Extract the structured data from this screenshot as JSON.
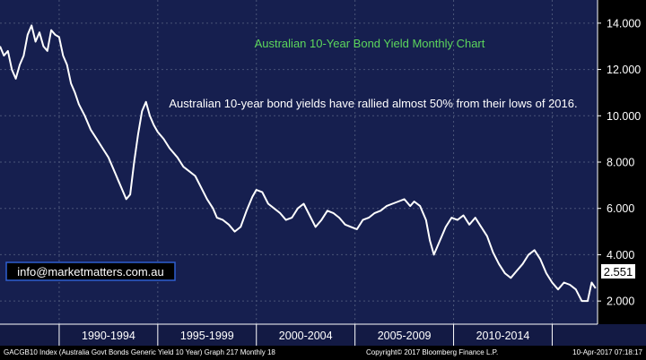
{
  "footer": {
    "left": "GACGB10 Index (Australia Govt Bonds Generic Yield 10 Year) Graph 217  Monthly 18",
    "center": "Copyright© 2017 Bloomberg Finance L.P.",
    "right": "10-Apr-2017 07:18:17"
  },
  "chart_data": {
    "type": "line",
    "title": "Australian 10-Year Bond Yield Monthly Chart",
    "annotation": "Australian 10-year bond yields have rallied almost 50% from their lows of 2016.",
    "watermark": "info@marketmatters.com.au",
    "last_value_label": "2.551",
    "ylim": [
      1,
      15
    ],
    "y_ticks": [
      "2.000",
      "4.000",
      "6.000",
      "8.000",
      "10.000",
      "12.000",
      "14.000"
    ],
    "x_range": [
      1987.0,
      2017.3
    ],
    "x_groups": [
      {
        "label": "1990-1994",
        "from": 1990,
        "to": 1995
      },
      {
        "label": "1995-1999",
        "from": 1995,
        "to": 2000
      },
      {
        "label": "2000-2004",
        "from": 2000,
        "to": 2005
      },
      {
        "label": "2005-2009",
        "from": 2005,
        "to": 2010
      },
      {
        "label": "2010-2014",
        "from": 2010,
        "to": 2015
      }
    ],
    "grid": true,
    "colors": {
      "background": "#000000",
      "plot_background": "#161f4f",
      "grid": "#4a5478",
      "line": "#ffffff",
      "title": "#5cd65c",
      "text": "#ffffff",
      "axis_bar": "#131a44",
      "watermark_border": "#2e5fd0"
    },
    "series": [
      {
        "x": [
          1987.0,
          1987.2,
          1987.4,
          1987.6,
          1987.8,
          1988.0,
          1988.2,
          1988.4,
          1988.6,
          1988.8,
          1989.0,
          1989.2,
          1989.4,
          1989.6,
          1989.8,
          1990.0,
          1990.2,
          1990.4,
          1990.6,
          1990.8,
          1991.0,
          1991.3,
          1991.6,
          1991.9,
          1992.2,
          1992.5,
          1992.8,
          1993.0,
          1993.2,
          1993.4,
          1993.6,
          1993.8,
          1994.0,
          1994.2,
          1994.4,
          1994.6,
          1994.8,
          1995.0,
          1995.3,
          1995.6,
          1996.0,
          1996.3,
          1996.6,
          1996.9,
          1997.2,
          1997.5,
          1997.8,
          1998.0,
          1998.3,
          1998.6,
          1998.9,
          1999.2,
          1999.5,
          1999.8,
          2000.0,
          2000.3,
          2000.6,
          2000.9,
          2001.2,
          2001.5,
          2001.8,
          2002.1,
          2002.4,
          2002.7,
          2003.0,
          2003.3,
          2003.6,
          2003.9,
          2004.2,
          2004.5,
          2004.8,
          2005.1,
          2005.4,
          2005.7,
          2006.0,
          2006.3,
          2006.6,
          2006.9,
          2007.2,
          2007.5,
          2007.8,
          2008.0,
          2008.3,
          2008.6,
          2008.8,
          2009.0,
          2009.3,
          2009.6,
          2009.9,
          2010.2,
          2010.5,
          2010.8,
          2011.1,
          2011.4,
          2011.7,
          2012.0,
          2012.3,
          2012.6,
          2012.9,
          2013.2,
          2013.5,
          2013.8,
          2014.1,
          2014.4,
          2014.7,
          2015.0,
          2015.3,
          2015.6,
          2015.9,
          2016.2,
          2016.5,
          2016.8,
          2017.0,
          2017.2
        ],
        "values": [
          13.0,
          12.6,
          12.8,
          12.0,
          11.6,
          12.2,
          12.6,
          13.5,
          13.9,
          13.2,
          13.6,
          13.0,
          12.8,
          13.7,
          13.5,
          13.4,
          12.6,
          12.2,
          11.4,
          11.0,
          10.5,
          10.0,
          9.4,
          9.0,
          8.6,
          8.2,
          7.6,
          7.2,
          6.8,
          6.4,
          6.6,
          8.0,
          9.2,
          10.2,
          10.6,
          10.0,
          9.6,
          9.3,
          9.0,
          8.6,
          8.2,
          7.8,
          7.6,
          7.4,
          6.9,
          6.4,
          6.0,
          5.6,
          5.5,
          5.3,
          5.0,
          5.2,
          5.9,
          6.5,
          6.8,
          6.7,
          6.2,
          6.0,
          5.8,
          5.5,
          5.6,
          6.0,
          6.2,
          5.7,
          5.2,
          5.5,
          5.9,
          5.8,
          5.6,
          5.3,
          5.2,
          5.1,
          5.5,
          5.6,
          5.8,
          5.9,
          6.1,
          6.2,
          6.3,
          6.4,
          6.1,
          6.3,
          6.1,
          5.5,
          4.6,
          4.0,
          4.6,
          5.2,
          5.6,
          5.5,
          5.7,
          5.3,
          5.6,
          5.2,
          4.8,
          4.1,
          3.6,
          3.2,
          3.0,
          3.3,
          3.6,
          4.0,
          4.2,
          3.8,
          3.2,
          2.8,
          2.5,
          2.8,
          2.7,
          2.5,
          2.0,
          2.0,
          2.8,
          2.551
        ]
      }
    ]
  }
}
